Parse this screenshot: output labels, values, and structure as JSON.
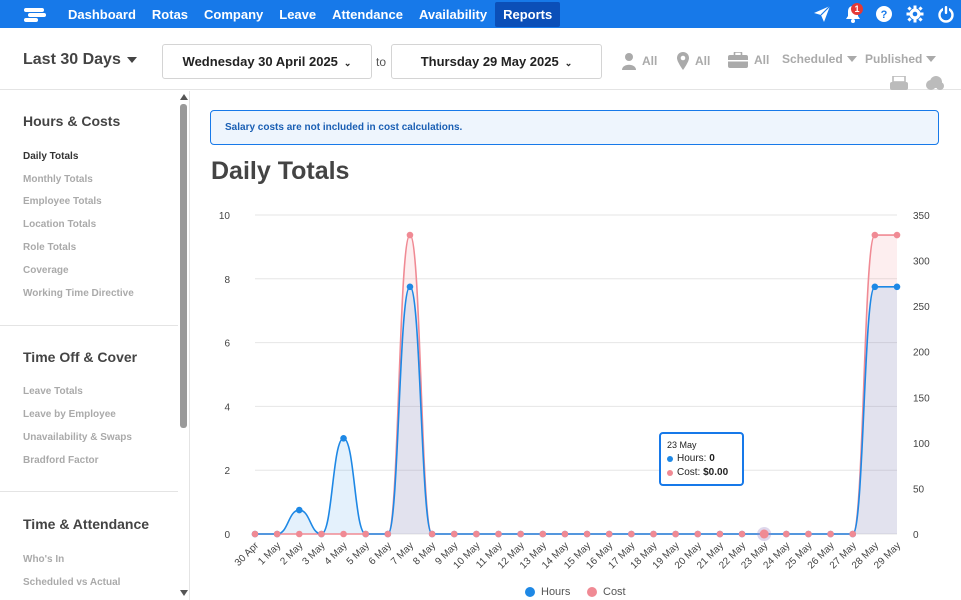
{
  "nav": {
    "items": [
      "Dashboard",
      "Rotas",
      "Company",
      "Leave",
      "Attendance",
      "Availability",
      "Reports"
    ],
    "active": "Reports",
    "notification_count": "1",
    "icons": [
      "send-icon",
      "bell-icon",
      "help-icon",
      "settings-icon",
      "power-icon"
    ]
  },
  "filters": {
    "range": "Last 30 Days",
    "start_date": "Wednesday 30 April 2025",
    "to_label": "to",
    "end_date": "Thursday 29 May 2025",
    "employee": "All",
    "location": "All",
    "role": "All",
    "schedule_state": "Scheduled",
    "publish_state": "Published"
  },
  "sidebar": {
    "sections": [
      {
        "heading": "Hours & Costs",
        "links": [
          "Daily Totals",
          "Monthly Totals",
          "Employee Totals",
          "Location Totals",
          "Role Totals",
          "Coverage",
          "Working Time Directive"
        ]
      },
      {
        "heading": "Time Off & Cover",
        "links": [
          "Leave Totals",
          "Leave by Employee",
          "Unavailability & Swaps",
          "Bradford Factor"
        ]
      },
      {
        "heading": "Time & Attendance",
        "links": [
          "Who's In",
          "Scheduled vs Actual"
        ]
      }
    ],
    "active_link": "Daily Totals"
  },
  "notice": "Salary costs are not included in cost calculations.",
  "page_title": "Daily Totals",
  "tooltip": {
    "date": "23 May",
    "hours_label": "Hours:",
    "hours_value": "0",
    "cost_label": "Cost:",
    "cost_value": "$0.00"
  },
  "legend": {
    "hours": "Hours",
    "cost": "Cost"
  },
  "colors": {
    "brand": "#1779e9",
    "hours": "#1e88e5",
    "cost": "#f08a94"
  },
  "chart_data": {
    "type": "area",
    "categories": [
      "30 Apr",
      "1 May",
      "2 May",
      "3 May",
      "4 May",
      "5 May",
      "6 May",
      "7 May",
      "8 May",
      "9 May",
      "10 May",
      "11 May",
      "12 May",
      "13 May",
      "14 May",
      "15 May",
      "16 May",
      "17 May",
      "18 May",
      "19 May",
      "20 May",
      "21 May",
      "22 May",
      "23 May",
      "24 May",
      "25 May",
      "26 May",
      "27 May",
      "28 May",
      "29 May"
    ],
    "series": [
      {
        "name": "Hours",
        "axis": "left",
        "values": [
          0,
          0,
          0.75,
          0,
          3,
          0,
          0,
          7.75,
          0,
          0,
          0,
          0,
          0,
          0,
          0,
          0,
          0,
          0,
          0,
          0,
          0,
          0,
          0,
          0,
          0,
          0,
          0,
          0,
          7.75,
          7.75
        ]
      },
      {
        "name": "Cost",
        "axis": "right",
        "values": [
          0,
          0,
          0,
          0,
          0,
          0,
          0,
          328,
          0,
          0,
          0,
          0,
          0,
          0,
          0,
          0,
          0,
          0,
          0,
          0,
          0,
          0,
          0,
          0,
          0,
          0,
          0,
          0,
          328,
          328
        ]
      }
    ],
    "y_left": {
      "ticks": [
        0,
        2,
        4,
        6,
        8,
        10
      ],
      "ylim": [
        0,
        10
      ]
    },
    "y_right": {
      "ticks": [
        0,
        50,
        100,
        150,
        200,
        250,
        300,
        350
      ],
      "ylim": [
        0,
        350
      ]
    },
    "grid": true,
    "legend_position": "bottom-center",
    "highlighted_category": "23 May"
  }
}
